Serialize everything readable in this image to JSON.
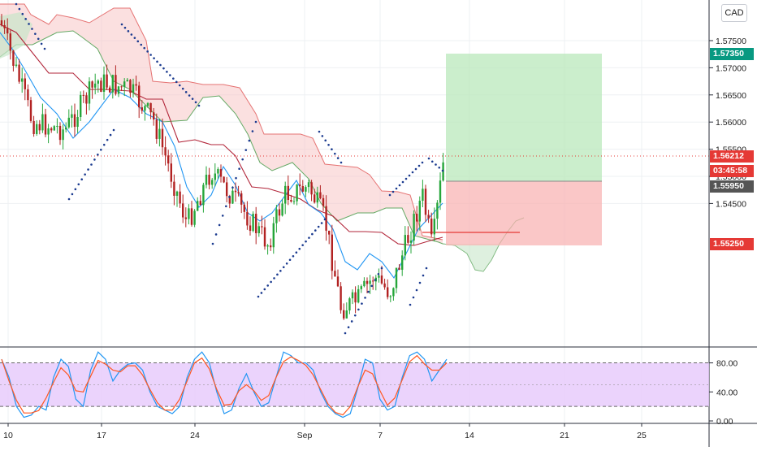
{
  "currency_button": "CAD",
  "main_price_axis": {
    "ticks": [
      "1.57500",
      "1.57000",
      "1.56500",
      "1.56000",
      "1.55500",
      "1.55000",
      "1.54500"
    ]
  },
  "price_tags": {
    "take_profit": {
      "value": "1.57350",
      "color": "#089981"
    },
    "last_price": {
      "value": "1.56212",
      "color": "#e53935"
    },
    "countdown": {
      "value": "03:45:58",
      "color": "#e53935"
    },
    "entry": {
      "value": "1.55950",
      "color": "#555555"
    },
    "stop_loss": {
      "value": "1.55250",
      "color": "#e53935"
    }
  },
  "oscillator_axis": {
    "ticks": [
      "80.00",
      "40.00",
      "0.00"
    ]
  },
  "time_axis": {
    "labels": [
      "10",
      "17",
      "24",
      "Sep",
      "7",
      "14",
      "21",
      "25"
    ]
  },
  "colors": {
    "bull": "#26a63a",
    "bear": "#b22222",
    "cloud_bear": "#f7c6c6",
    "cloud_bull": "#c8e6c9",
    "tenkan": "#2196f3",
    "kijun": "#b2263a",
    "psar": "#1a3a8f",
    "profit_zone": "#b9e8bb",
    "loss_zone": "#f8b4b4",
    "osc_band": "#e6c8fb"
  }
}
